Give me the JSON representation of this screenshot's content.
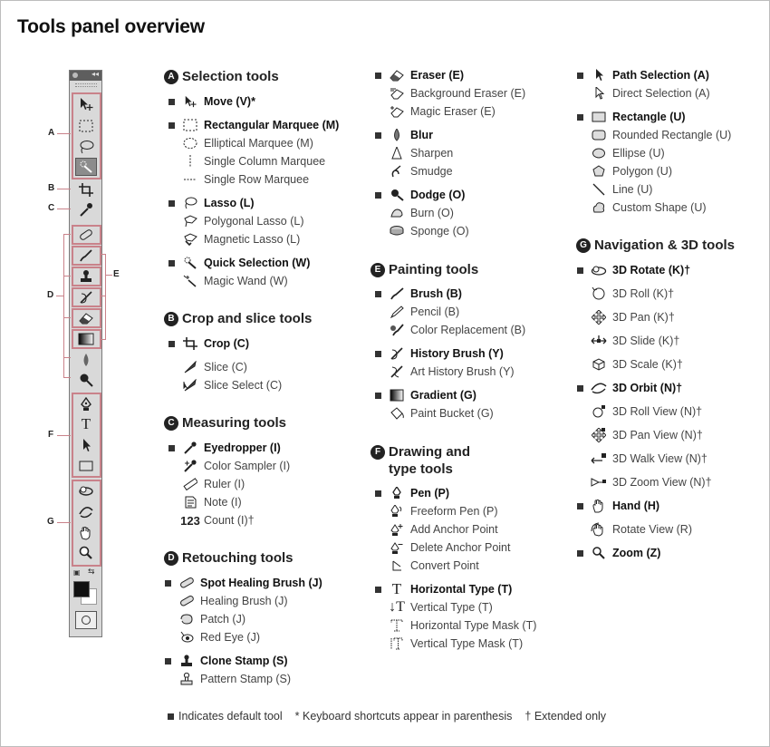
{
  "title": "Tools panel overview",
  "side_labels": [
    "A",
    "B",
    "C",
    "D",
    "E",
    "F",
    "G"
  ],
  "sections": {
    "a": {
      "letter": "A",
      "title": "Selection tools"
    },
    "b": {
      "letter": "B",
      "title": "Crop and slice tools"
    },
    "c": {
      "letter": "C",
      "title": "Measuring tools"
    },
    "d": {
      "letter": "D",
      "title": "Retouching tools"
    },
    "e": {
      "letter": "E",
      "title": "Painting tools"
    },
    "f": {
      "letter": "F",
      "title_line1": "Drawing and",
      "title_line2": "type tools"
    },
    "g": {
      "letter": "G",
      "title": "Navigation & 3D tools"
    }
  },
  "items": {
    "move": "Move (V)*",
    "rect_marquee": "Rectangular Marquee (M)",
    "ellip_marquee": "Elliptical Marquee (M)",
    "single_col": "Single Column Marquee",
    "single_row": "Single Row Marquee",
    "lasso": "Lasso (L)",
    "poly_lasso": "Polygonal Lasso (L)",
    "mag_lasso": "Magnetic Lasso (L)",
    "quick_sel": "Quick Selection (W)",
    "magic_wand": "Magic Wand (W)",
    "crop": "Crop (C)",
    "slice": "Slice (C)",
    "slice_select": "Slice Select (C)",
    "eyedropper": "Eyedropper (I)",
    "color_sampler": "Color Sampler (I)",
    "ruler": "Ruler (I)",
    "note": "Note (I)",
    "count": "Count (I)†",
    "count_icon": "123",
    "spot_heal": "Spot Healing Brush (J)",
    "heal": "Healing Brush (J)",
    "patch": "Patch (J)",
    "red_eye": "Red Eye (J)",
    "clone": "Clone Stamp (S)",
    "pattern": "Pattern Stamp (S)",
    "eraser": "Eraser (E)",
    "bg_eraser": "Background Eraser (E)",
    "magic_eraser": "Magic Eraser (E)",
    "blur": "Blur",
    "sharpen": "Sharpen",
    "smudge": "Smudge",
    "dodge": "Dodge (O)",
    "burn": "Burn (O)",
    "sponge": "Sponge (O)",
    "brush": "Brush (B)",
    "pencil": "Pencil (B)",
    "color_replace": "Color Replacement (B)",
    "history_brush": "History Brush (Y)",
    "art_history": "Art History Brush (Y)",
    "gradient": "Gradient (G)",
    "paint_bucket": "Paint Bucket (G)",
    "pen": "Pen (P)",
    "freeform_pen": "Freeform Pen (P)",
    "add_anchor": "Add Anchor Point",
    "delete_anchor": "Delete Anchor Point",
    "convert_point": "Convert Point",
    "h_type": "Horizontal Type (T)",
    "v_type": "Vertical Type (T)",
    "h_type_mask": "Horizontal Type Mask (T)",
    "v_type_mask": "Vertical Type Mask (T)",
    "path_sel": "Path Selection (A)",
    "direct_sel": "Direct Selection (A)",
    "rectangle": "Rectangle (U)",
    "rounded_rect": "Rounded Rectangle (U)",
    "ellipse": "Ellipse (U)",
    "polygon": "Polygon (U)",
    "line": "Line (U)",
    "custom_shape": "Custom Shape (U)",
    "rotate3d": "3D Rotate (K)†",
    "roll3d": "3D Roll (K)†",
    "pan3d": "3D Pan (K)†",
    "slide3d": "3D Slide (K)†",
    "scale3d": "3D Scale (K)†",
    "orbit3d": "3D Orbit (N)†",
    "roll_view": "3D Roll View (N)†",
    "pan_view": "3D Pan View (N)†",
    "walk_view": "3D Walk View (N)†",
    "zoom_view": "3D Zoom View (N)†",
    "hand": "Hand (H)",
    "rotate_view": "Rotate View (R)",
    "zoom": "Zoom (Z)"
  },
  "footer": {
    "default_tool": "Indicates default tool",
    "shortcuts": "* Keyboard shortcuts appear in parenthesis",
    "extended": "† Extended only"
  },
  "colors": {
    "bracket": "#c9828a",
    "text": "#222222",
    "panel": "#d9d9d9"
  }
}
